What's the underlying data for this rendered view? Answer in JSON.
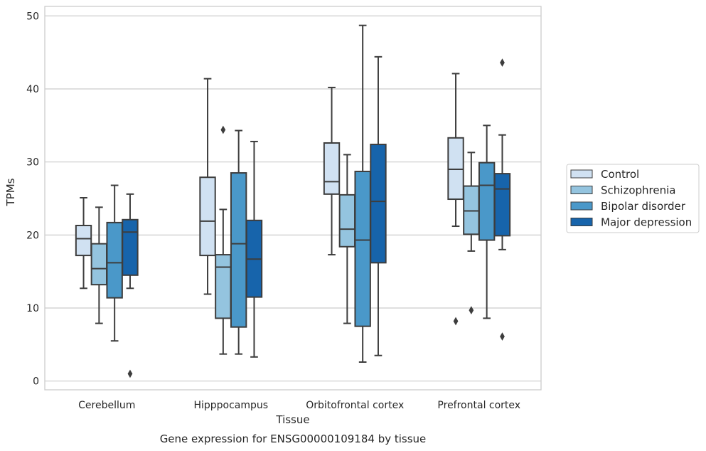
{
  "chart_data": {
    "type": "box",
    "title": "Gene expression for ENSG00000109184 by tissue",
    "xlabel": "Tissue",
    "ylabel": "TPMs",
    "ylim": [
      -1.2,
      51.3
    ],
    "yticks": [
      0,
      10,
      20,
      30,
      40,
      50
    ],
    "grid": "horizontal",
    "legend_position": "right",
    "categories": [
      "Cerebellum",
      "Hipppocampus",
      "Orbitofrontal cortex",
      "Prefrontal cortex"
    ],
    "series": [
      {
        "name": "Control",
        "color": "#d0e1f2",
        "boxes": [
          {
            "whislo": 12.7,
            "q1": 17.2,
            "med": 19.5,
            "q3": 21.3,
            "whishi": 25.1,
            "fliers": []
          },
          {
            "whislo": 11.9,
            "q1": 17.2,
            "med": 21.9,
            "q3": 27.9,
            "whishi": 41.4,
            "fliers": []
          },
          {
            "whislo": 17.3,
            "q1": 25.6,
            "med": 27.3,
            "q3": 32.6,
            "whishi": 40.2,
            "fliers": []
          },
          {
            "whislo": 21.2,
            "q1": 24.9,
            "med": 29.0,
            "q3": 33.3,
            "whishi": 42.1,
            "fliers": [
              8.2
            ]
          }
        ]
      },
      {
        "name": "Schizophrenia",
        "color": "#94c4df",
        "boxes": [
          {
            "whislo": 7.9,
            "q1": 13.2,
            "med": 15.4,
            "q3": 18.8,
            "whishi": 23.8,
            "fliers": []
          },
          {
            "whislo": 3.7,
            "q1": 8.6,
            "med": 15.6,
            "q3": 17.3,
            "whishi": 23.5,
            "fliers": [
              34.4
            ]
          },
          {
            "whislo": 7.9,
            "q1": 18.4,
            "med": 20.8,
            "q3": 25.5,
            "whishi": 31.0,
            "fliers": []
          },
          {
            "whislo": 17.8,
            "q1": 20.1,
            "med": 23.3,
            "q3": 26.7,
            "whishi": 31.3,
            "fliers": [
              9.7
            ]
          }
        ]
      },
      {
        "name": "Bipolar disorder",
        "color": "#4a98c9",
        "boxes": [
          {
            "whislo": 5.5,
            "q1": 11.4,
            "med": 16.2,
            "q3": 21.7,
            "whishi": 26.8,
            "fliers": []
          },
          {
            "whislo": 3.7,
            "q1": 7.4,
            "med": 18.8,
            "q3": 28.5,
            "whishi": 34.3,
            "fliers": []
          },
          {
            "whislo": 2.6,
            "q1": 7.5,
            "med": 19.3,
            "q3": 28.7,
            "whishi": 48.7,
            "fliers": []
          },
          {
            "whislo": 8.6,
            "q1": 19.3,
            "med": 26.8,
            "q3": 29.9,
            "whishi": 35.0,
            "fliers": []
          }
        ]
      },
      {
        "name": "Major depression",
        "color": "#1764ab",
        "boxes": [
          {
            "whislo": 12.7,
            "q1": 14.5,
            "med": 20.4,
            "q3": 22.1,
            "whishi": 25.6,
            "fliers": [
              1.0
            ]
          },
          {
            "whislo": 3.3,
            "q1": 11.5,
            "med": 16.7,
            "q3": 22.0,
            "whishi": 32.8,
            "fliers": []
          },
          {
            "whislo": 3.5,
            "q1": 16.2,
            "med": 24.6,
            "q3": 32.4,
            "whishi": 44.4,
            "fliers": []
          },
          {
            "whislo": 18.0,
            "q1": 19.9,
            "med": 26.3,
            "q3": 28.4,
            "whishi": 33.7,
            "fliers": [
              43.6,
              6.1
            ]
          }
        ]
      }
    ]
  }
}
